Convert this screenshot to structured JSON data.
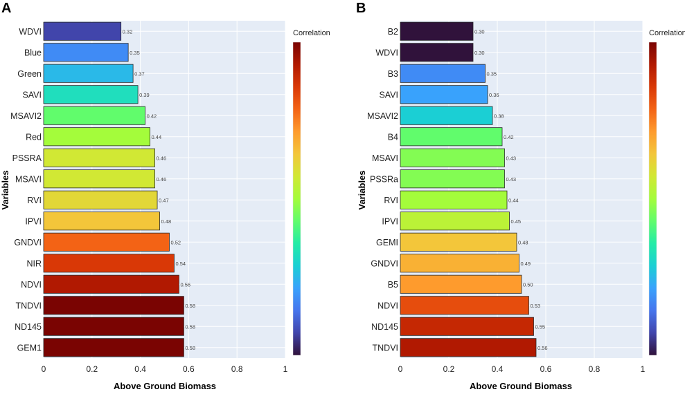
{
  "colorscale": [
    "#30123b",
    "#4145ab",
    "#4675ed",
    "#39a2fc",
    "#1bcfd4",
    "#24eca6",
    "#61fc6c",
    "#a4fc3b",
    "#d1e834",
    "#f3c63a",
    "#fe9b2d",
    "#f36315",
    "#d93806",
    "#b11901",
    "#7a0402"
  ],
  "color_domain": [
    0.3,
    0.58
  ],
  "chart_data": [
    {
      "panel": "A",
      "type": "bar",
      "orientation": "horizontal",
      "xlabel": "Above Ground Biomass",
      "ylabel": "Variables",
      "legend_title": "Correlation",
      "xlim": [
        0,
        1
      ],
      "xticks": [
        "0",
        "0.2",
        "0.4",
        "0.6",
        "0.8",
        "1"
      ],
      "categories": [
        "WDVI",
        "Blue",
        "Green",
        "SAVI",
        "MSAVI2",
        "Red",
        "PSSRA",
        "MSAVI",
        "RVI",
        "IPVI",
        "GNDVI",
        "NIR",
        "NDVI",
        "TNDVI",
        "ND145",
        "GEM1"
      ],
      "values": [
        0.32,
        0.35,
        0.37,
        0.39,
        0.42,
        0.44,
        0.46,
        0.46,
        0.47,
        0.48,
        0.52,
        0.54,
        0.56,
        0.58,
        0.58,
        0.58
      ],
      "value_labels": [
        "0.32",
        "0.35",
        "0.37",
        "0.39",
        "0.42",
        "0.44",
        "0.46",
        "0.46",
        "0.47",
        "0.48",
        "0.52",
        "0.54",
        "0.56",
        "0.58",
        "0.58",
        "0.58"
      ]
    },
    {
      "panel": "B",
      "type": "bar",
      "orientation": "horizontal",
      "xlabel": "Above Ground Biomass",
      "ylabel": "Variables",
      "legend_title": "Correlation",
      "xlim": [
        0,
        1
      ],
      "xticks": [
        "0",
        "0.2",
        "0.4",
        "0.6",
        "0.8",
        "1"
      ],
      "categories": [
        "B2",
        "WDVI",
        "B3",
        "SAVI",
        "MSAVI2",
        "B4",
        "MSAVI",
        "PSSRa",
        "RVI",
        "IPVI",
        "GEMI",
        "GNDVI",
        "B5",
        "NDVI",
        "ND145",
        "TNDVI"
      ],
      "values": [
        0.3,
        0.3,
        0.35,
        0.36,
        0.38,
        0.42,
        0.43,
        0.43,
        0.44,
        0.45,
        0.48,
        0.49,
        0.5,
        0.53,
        0.55,
        0.56
      ],
      "value_labels": [
        "0.30",
        "0.30",
        "0.35",
        "0.36",
        "0.38",
        "0.42",
        "0.43",
        "0.43",
        "0.44",
        "0.45",
        "0.48",
        "0.49",
        "0.50",
        "0.53",
        "0.55",
        "0.56"
      ]
    }
  ]
}
